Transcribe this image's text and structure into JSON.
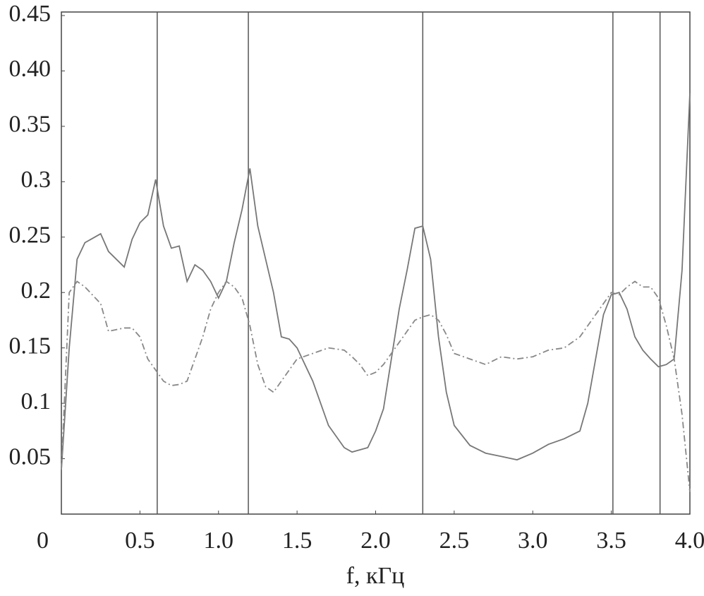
{
  "chart_data": {
    "type": "line",
    "xlabel": "f, кГц",
    "x": [
      0,
      0.05,
      0.1,
      0.15,
      0.25,
      0.3,
      0.4,
      0.45,
      0.5,
      0.55,
      0.6,
      0.65,
      0.7,
      0.75,
      0.8,
      0.85,
      0.9,
      0.95,
      1.0,
      1.05,
      1.1,
      1.15,
      1.2,
      1.25,
      1.3,
      1.35,
      1.4,
      1.45,
      1.5,
      1.6,
      1.7,
      1.8,
      1.85,
      1.9,
      1.95,
      2.0,
      2.05,
      2.1,
      2.15,
      2.2,
      2.25,
      2.3,
      2.35,
      2.4,
      2.45,
      2.5,
      2.6,
      2.7,
      2.8,
      2.9,
      3.0,
      3.1,
      3.2,
      3.3,
      3.35,
      3.4,
      3.45,
      3.5,
      3.55,
      3.6,
      3.65,
      3.7,
      3.75,
      3.8,
      3.85,
      3.9,
      3.95,
      4.0
    ],
    "series": [
      {
        "color": "#777777",
        "dash": "solid",
        "values": [
          0.04,
          0.15,
          0.23,
          0.245,
          0.253,
          0.237,
          0.223,
          0.248,
          0.263,
          0.27,
          0.302,
          0.26,
          0.24,
          0.242,
          0.21,
          0.225,
          0.22,
          0.21,
          0.195,
          0.21,
          0.245,
          0.275,
          0.312,
          0.26,
          0.23,
          0.2,
          0.16,
          0.158,
          0.15,
          0.12,
          0.08,
          0.06,
          0.056,
          0.058,
          0.06,
          0.075,
          0.095,
          0.14,
          0.185,
          0.22,
          0.258,
          0.26,
          0.23,
          0.16,
          0.11,
          0.08,
          0.062,
          0.055,
          0.052,
          0.049,
          0.055,
          0.063,
          0.068,
          0.075,
          0.1,
          0.14,
          0.18,
          0.198,
          0.2,
          0.185,
          0.16,
          0.148,
          0.14,
          0.133,
          0.135,
          0.14,
          0.22,
          0.38
        ]
      },
      {
        "color": "#888888",
        "dash": "dashdot",
        "values": [
          0.04,
          0.2,
          0.21,
          0.205,
          0.19,
          0.165,
          0.168,
          0.168,
          0.16,
          0.14,
          0.13,
          0.12,
          0.116,
          0.117,
          0.12,
          0.14,
          0.16,
          0.185,
          0.2,
          0.21,
          0.205,
          0.195,
          0.17,
          0.135,
          0.115,
          0.11,
          0.12,
          0.13,
          0.14,
          0.145,
          0.15,
          0.148,
          0.142,
          0.135,
          0.125,
          0.128,
          0.135,
          0.145,
          0.155,
          0.165,
          0.175,
          0.178,
          0.18,
          0.175,
          0.162,
          0.145,
          0.14,
          0.135,
          0.142,
          0.14,
          0.142,
          0.148,
          0.15,
          0.16,
          0.17,
          0.18,
          0.19,
          0.2,
          0.198,
          0.205,
          0.21,
          0.205,
          0.205,
          0.195,
          0.17,
          0.14,
          0.09,
          0.02
        ]
      }
    ],
    "vlines": [
      0.61,
      1.19,
      2.3,
      3.51,
      3.81
    ],
    "vline_color": "#555555",
    "xlim": [
      0,
      4.0
    ],
    "xticks": [
      0,
      0.5,
      {
        "value": 1,
        "label": "1.0"
      },
      1.5,
      {
        "value": 2,
        "label": "2.0"
      },
      2.5,
      {
        "value": 3,
        "label": "3.0"
      },
      3.5,
      {
        "value": 4,
        "label": "4.0"
      }
    ],
    "ylim": [
      0,
      0.45
    ],
    "yticks": [
      0.05,
      0.1,
      0.15,
      0.2,
      0.25,
      0.3,
      0.35,
      {
        "value": 0.4,
        "label": "0.40"
      },
      0.45
    ],
    "grid": false
  }
}
